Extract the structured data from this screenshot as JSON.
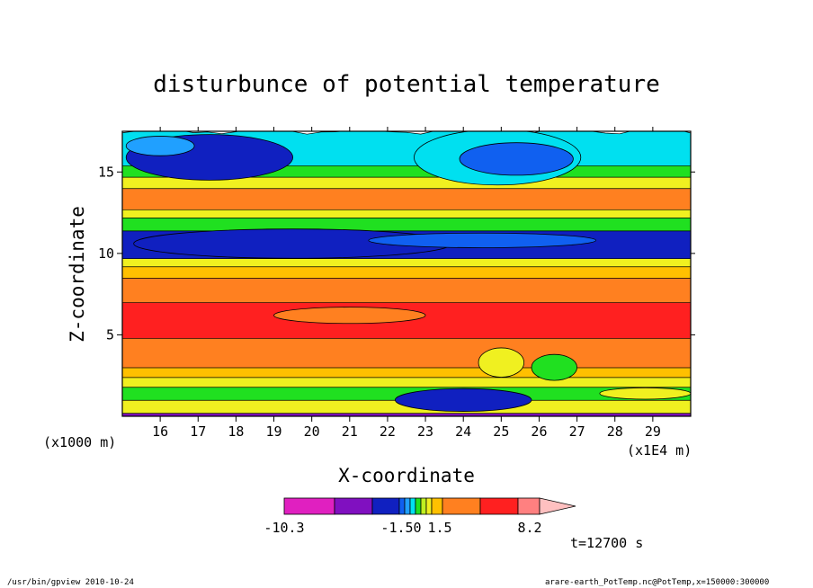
{
  "chart_data": {
    "type": "heatmap",
    "title": "disturbunce of potential temperature",
    "xlabel": "X-coordinate",
    "ylabel": "Z-coordinate",
    "x_unit_label": "(x1E4 m)",
    "y_unit_label": "(x1000 m)",
    "x_ticks": [
      16,
      17,
      18,
      19,
      20,
      21,
      22,
      23,
      24,
      25,
      26,
      27,
      28,
      29
    ],
    "y_ticks": [
      5,
      10,
      15
    ],
    "xlim": [
      15,
      30
    ],
    "ylim": [
      0,
      17.5
    ],
    "time_label": "t=12700 s",
    "colorbar": {
      "labels": [
        "-10.3",
        "-1.50",
        "1.5",
        "8.2"
      ],
      "colors": [
        "#e020c0",
        "#8010c0",
        "#1020c0",
        "#1060f0",
        "#20a0ff",
        "#00e0f0",
        "#20e020",
        "#c0f020",
        "#f0f020",
        "#ffc000",
        "#ff8020",
        "#ff2020",
        "#ff8080",
        "#ffc0c0"
      ]
    },
    "layers": [
      {
        "zmin": 0.0,
        "zmax": 0.4,
        "level": "deep negative",
        "color": "#8010c0"
      },
      {
        "zmin": 0.4,
        "zmax": 1.2,
        "level": "yellow",
        "color": "#f0f020"
      },
      {
        "zmin": 1.2,
        "zmax": 2.0,
        "level": "green",
        "color": "#20e020"
      },
      {
        "zmin": 2.0,
        "zmax": 2.6,
        "level": "yellow",
        "color": "#f0f020"
      },
      {
        "zmin": 2.6,
        "zmax": 3.2,
        "level": "orange-light",
        "color": "#ffc000"
      },
      {
        "zmin": 3.2,
        "zmax": 5.0,
        "level": "orange",
        "color": "#ff8020"
      },
      {
        "zmin": 5.0,
        "zmax": 7.2,
        "level": "red",
        "color": "#ff2020"
      },
      {
        "zmin": 7.2,
        "zmax": 8.7,
        "level": "orange",
        "color": "#ff8020"
      },
      {
        "zmin": 8.7,
        "zmax": 9.4,
        "level": "orange-light",
        "color": "#ffc000"
      },
      {
        "zmin": 9.4,
        "zmax": 9.9,
        "level": "yellow",
        "color": "#f0f020"
      },
      {
        "zmin": 9.9,
        "zmax": 11.6,
        "level": "strong negative",
        "color": "#1020c0"
      },
      {
        "zmin": 11.6,
        "zmax": 12.4,
        "level": "green",
        "color": "#20e020"
      },
      {
        "zmin": 12.4,
        "zmax": 12.9,
        "level": "yellow",
        "color": "#f0f020"
      },
      {
        "zmin": 12.9,
        "zmax": 14.2,
        "level": "orange",
        "color": "#ff8020"
      },
      {
        "zmin": 14.2,
        "zmax": 14.9,
        "level": "yellow",
        "color": "#f0f020"
      },
      {
        "zmin": 14.9,
        "zmax": 15.6,
        "level": "green",
        "color": "#20e020"
      },
      {
        "zmin": 15.6,
        "zmax": 17.5,
        "level": "cyan",
        "color": "#00e0f0"
      }
    ]
  },
  "footer": {
    "left": "/usr/bin/gpview   2010-10-24",
    "right": "arare-earth_PotTemp.nc@PotTemp,x=150000:300000"
  }
}
